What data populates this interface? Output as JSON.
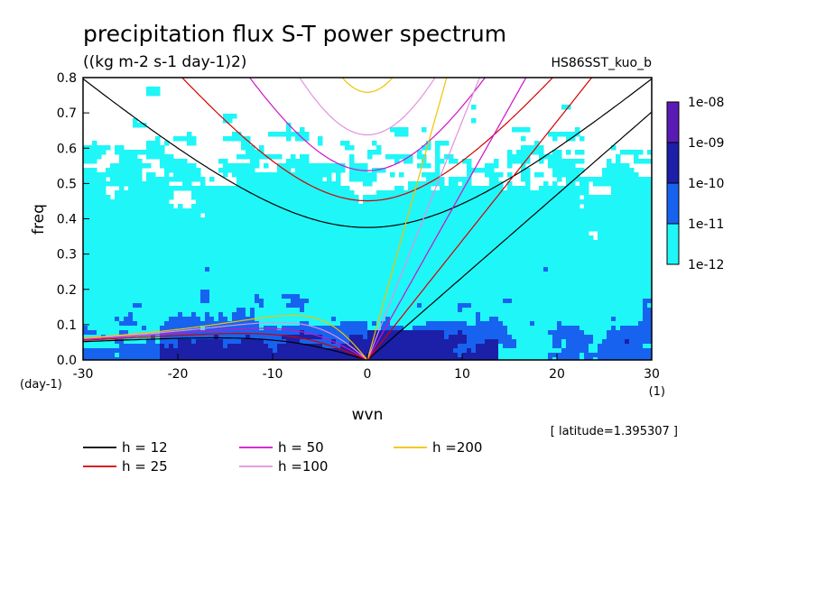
{
  "chart_data": {
    "type": "heatmap",
    "title": "precipitation flux S-T power spectrum",
    "subtitle": "((kg m-2 s-1 day-1)2)",
    "run_label": "HS86SST_kuo_b",
    "xlabel": "wvn",
    "ylabel": "freq",
    "x_unit": "(1)",
    "y_unit": "(day-1)",
    "xlim": [
      -30,
      30
    ],
    "ylim": [
      0,
      0.8
    ],
    "x_ticks": [
      -30,
      -20,
      -10,
      0,
      10,
      20,
      30
    ],
    "x_tick_labels": [
      "-30",
      "-20",
      "-10",
      "0",
      "10",
      "20",
      "30"
    ],
    "y_ticks": [
      0,
      0.1,
      0.2,
      0.3,
      0.4,
      0.5,
      0.6,
      0.7,
      0.8
    ],
    "y_tick_labels": [
      "0.0",
      "0.1",
      "0.2",
      "0.3",
      "0.4",
      "0.5",
      "0.6",
      "0.7",
      "0.8"
    ],
    "grid": false,
    "latitude_note": "[ latitude=1.395307 ]",
    "colorbar": {
      "labels": [
        "1e-08",
        "1e-09",
        "1e-10",
        "1e-11",
        "1e-12"
      ],
      "colors": [
        "#5a1bb4",
        "#1c1fa8",
        "#1763f0",
        "#1ff6f7"
      ]
    },
    "dispersion_legend": [
      {
        "label": "h = 12",
        "h": 12,
        "color": "#000000"
      },
      {
        "label": "h = 25",
        "h": 25,
        "color": "#d40000"
      },
      {
        "label": "h = 50",
        "h": 50,
        "color": "#d010c8"
      },
      {
        "label": "h =100",
        "h": 100,
        "color": "#e090e0"
      },
      {
        "label": "h =200",
        "h": 200,
        "color": "#f2c200"
      }
    ]
  }
}
